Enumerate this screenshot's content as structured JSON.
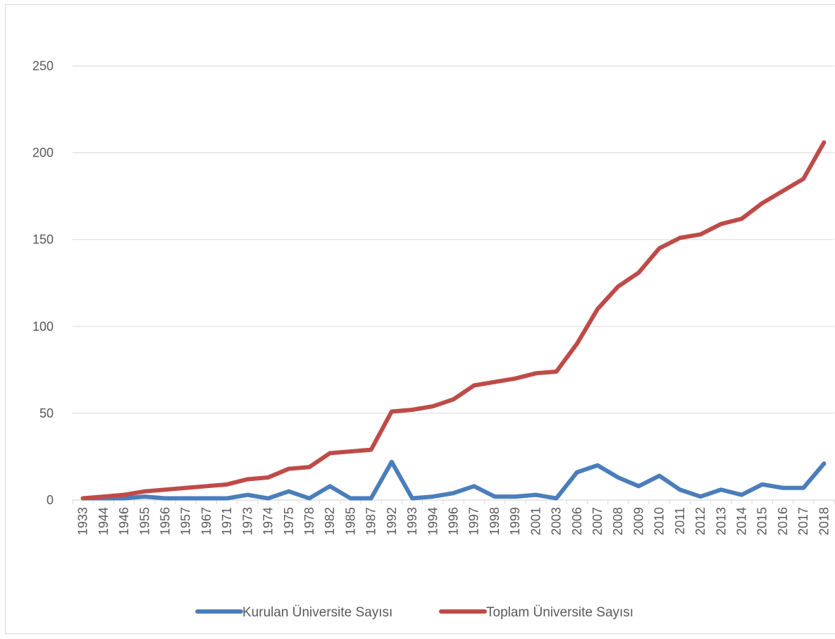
{
  "chart_data": {
    "type": "line",
    "title": "",
    "xlabel": "",
    "ylabel": "",
    "ylim": [
      0,
      275
    ],
    "yticks": [
      0,
      50,
      100,
      150,
      200,
      250
    ],
    "grid": "horizontal",
    "legend_position": "bottom",
    "categories": [
      "1933",
      "1944",
      "1946",
      "1955",
      "1956",
      "1957",
      "1967",
      "1971",
      "1973",
      "1974",
      "1975",
      "1978",
      "1982",
      "1985",
      "1987",
      "1992",
      "1993",
      "1994",
      "1996",
      "1997",
      "1998",
      "1999",
      "2001",
      "2003",
      "2006",
      "2007",
      "2008",
      "2009",
      "2010",
      "2011",
      "2012",
      "2013",
      "2014",
      "2015",
      "2016",
      "2017",
      "2018"
    ],
    "series": [
      {
        "name": "Kurulan Üniversite Sayısı",
        "color": "#4a7ebb",
        "values": [
          1,
          1,
          1,
          2,
          1,
          1,
          1,
          1,
          3,
          1,
          5,
          1,
          8,
          1,
          1,
          22,
          1,
          2,
          4,
          8,
          2,
          2,
          3,
          1,
          16,
          20,
          13,
          8,
          14,
          6,
          2,
          6,
          3,
          9,
          7,
          7,
          21
        ]
      },
      {
        "name": "Toplam Üniversite Sayısı",
        "color": "#be4b48",
        "values": [
          1,
          2,
          3,
          5,
          6,
          7,
          8,
          9,
          12,
          13,
          18,
          19,
          27,
          28,
          29,
          51,
          52,
          54,
          58,
          66,
          68,
          70,
          73,
          74,
          90,
          110,
          123,
          131,
          145,
          151,
          153,
          159,
          162,
          171,
          178,
          185,
          206
        ]
      }
    ]
  }
}
